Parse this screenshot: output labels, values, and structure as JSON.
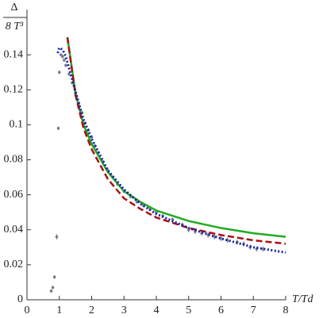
{
  "chart_data": {
    "type": "scatter",
    "ylabel_numerator": "Δ",
    "ylabel_denominator": "8 T³",
    "xlabel": "T/Td",
    "xlim": [
      0,
      8
    ],
    "ylim": [
      0,
      0.16
    ],
    "xticks": [
      0,
      1,
      2,
      3,
      4,
      5,
      6,
      7,
      8
    ],
    "yticks": [
      0,
      0.02,
      0.04,
      0.06,
      0.08,
      0.1,
      0.12,
      0.14
    ],
    "series": [
      {
        "type": "scatter",
        "color": "#7a7a8c",
        "x": [
          0.75,
          0.8,
          0.85,
          0.92,
          0.97,
          1.0,
          1.05,
          1.1,
          1.15,
          1.2,
          1.3,
          1.4,
          1.5,
          1.6,
          1.7,
          1.8,
          1.9,
          2.0,
          2.1,
          2.2,
          2.35,
          2.5,
          2.65,
          2.8,
          3.0,
          3.2,
          3.4,
          3.6,
          3.8,
          4.0,
          4.2,
          4.5,
          4.8,
          5.0,
          5.2,
          5.4,
          5.6,
          5.8,
          6.0,
          6.2,
          6.5,
          6.7,
          6.9,
          7.1,
          7.3
        ],
        "values": [
          0.005,
          0.007,
          0.013,
          0.036,
          0.098,
          0.13,
          0.14,
          0.139,
          0.137,
          0.134,
          0.129,
          0.124,
          0.118,
          0.112,
          0.107,
          0.101,
          0.097,
          0.093,
          0.088,
          0.084,
          0.079,
          0.074,
          0.07,
          0.066,
          0.062,
          0.059,
          0.056,
          0.054,
          0.052,
          0.05,
          0.048,
          0.046,
          0.043,
          0.04,
          0.039,
          0.038,
          0.037,
          0.036,
          0.035,
          0.034,
          0.033,
          0.032,
          0.03,
          0.029,
          0.029
        ],
        "errors": [
          0.001,
          0.001,
          0.001,
          0.0015,
          0.001,
          0.001,
          0.001,
          0.001,
          0.001,
          0.001,
          0.001,
          0.001,
          0.001,
          0.001,
          0.001,
          0.001,
          0.001,
          0.001,
          0.001,
          0.001,
          0.001,
          0.001,
          0.001,
          0.001,
          0.001,
          0.001,
          0.001,
          0.001,
          0.001,
          0.001,
          0.001,
          0.001,
          0.001,
          0.0015,
          0.0015,
          0.0015,
          0.0015,
          0.0015,
          0.0015,
          0.0015,
          0.0015,
          0.0015,
          0.0015,
          0.0015,
          0.0015
        ]
      },
      {
        "type": "line",
        "color": "#22aa22",
        "dash": "solid",
        "x": [
          1.25,
          1.5,
          1.75,
          2,
          2.5,
          3,
          3.5,
          4,
          5,
          6,
          7,
          8
        ],
        "values": [
          0.15,
          0.118,
          0.1,
          0.089,
          0.073,
          0.062,
          0.056,
          0.051,
          0.045,
          0.041,
          0.038,
          0.036
        ]
      },
      {
        "type": "line",
        "color": "#aa1111",
        "dash": "dashed",
        "x": [
          1.25,
          1.5,
          1.75,
          2,
          2.5,
          3,
          3.5,
          4,
          5,
          6,
          7,
          8
        ],
        "values": [
          0.15,
          0.117,
          0.098,
          0.086,
          0.069,
          0.058,
          0.052,
          0.047,
          0.041,
          0.037,
          0.034,
          0.032
        ]
      },
      {
        "type": "line",
        "color": "#1122aa",
        "dash": "dotted",
        "x": [
          0.95,
          1.0,
          1.1,
          1.2,
          1.5,
          1.75,
          2,
          2.5,
          3,
          3.5,
          4,
          5,
          6,
          7,
          8
        ],
        "values": [
          0.141,
          0.144,
          0.143,
          0.139,
          0.119,
          0.103,
          0.092,
          0.074,
          0.063,
          0.055,
          0.049,
          0.041,
          0.035,
          0.03,
          0.027
        ]
      }
    ]
  }
}
